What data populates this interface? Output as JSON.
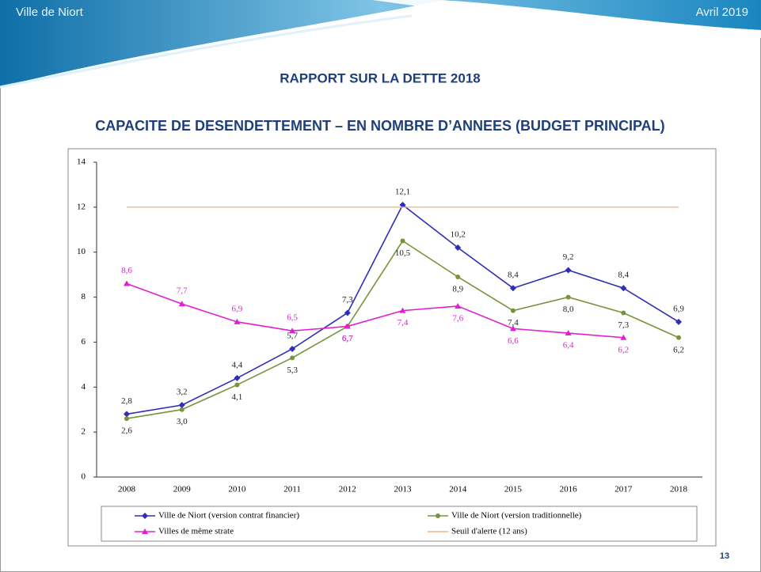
{
  "header": {
    "left": "Ville de Niort",
    "right": "Avril 2019",
    "title": "RAPPORT SUR LA DETTE 2018"
  },
  "page_number": "13",
  "chart_data": {
    "type": "line",
    "title": "CAPACITE DE DESENDETTEMENT – EN NOMBRE D’ANNEES (BUDGET PRINCIPAL)",
    "categories": [
      "2008",
      "2009",
      "2010",
      "2011",
      "2012",
      "2013",
      "2014",
      "2015",
      "2016",
      "2017",
      "2018"
    ],
    "ylim": [
      0,
      14
    ],
    "yticks": [
      0,
      2,
      4,
      6,
      8,
      10,
      12,
      14
    ],
    "series": [
      {
        "name": "Ville de Niort (version contrat financier)",
        "color": "#2e2eb8",
        "marker": "diamond",
        "values": [
          2.8,
          3.2,
          4.4,
          5.7,
          7.3,
          12.1,
          10.2,
          8.4,
          9.2,
          8.4,
          6.9
        ],
        "value_labels": [
          "2,8",
          "3,2",
          "4,4",
          "5,7",
          "7,3",
          "12,1",
          "10,2",
          "8,4",
          "9,2",
          "8,4",
          "6,9"
        ]
      },
      {
        "name": "Ville de Niort (version traditionnelle)",
        "color": "#77933c",
        "marker": "circle",
        "values": [
          2.6,
          3.0,
          4.1,
          5.3,
          6.7,
          10.5,
          8.9,
          7.4,
          8.0,
          7.3,
          6.2
        ],
        "value_labels": [
          "2,6",
          "3,0",
          "4,1",
          "5,3",
          "6,7",
          "10,5",
          "8,9",
          "7,4",
          "8,0",
          "7,3",
          "6,2"
        ]
      },
      {
        "name": "Villes de même strate",
        "color": "#e020d0",
        "marker": "triangle",
        "values": [
          8.6,
          7.7,
          6.9,
          6.5,
          6.7,
          7.4,
          7.6,
          6.6,
          6.4,
          6.2,
          null
        ],
        "value_labels": [
          "8,6",
          "7,7",
          "6,9",
          "6,5",
          "6,7",
          "7,4",
          "7,6",
          "6,6",
          "6,4",
          "6,2",
          null
        ]
      },
      {
        "name": "Seuil d'alerte (12 ans)",
        "color": "#f4b183",
        "marker": "none",
        "values": [
          12,
          12,
          12,
          12,
          12,
          12,
          12,
          12,
          12,
          12,
          12
        ]
      }
    ]
  }
}
